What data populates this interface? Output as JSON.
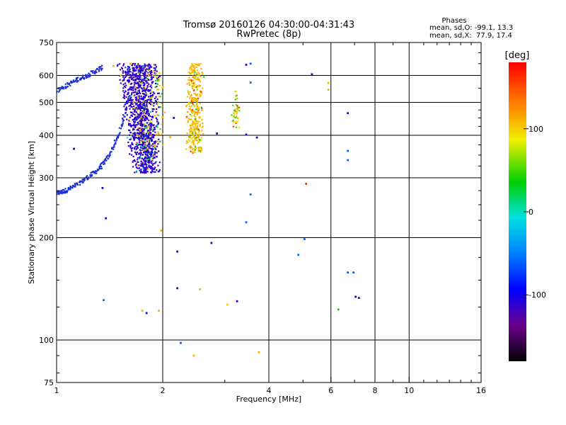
{
  "chart_data": {
    "type": "scatter",
    "title": "Tromsø 20160126 04:30:00-04:31:43",
    "subtitle": "RwPretec (8p)",
    "stats": {
      "heading": "Phases",
      "line_o": "mean, sd,O: -99.1, 13.3",
      "line_x": "mean, sd,X:  77.9, 17.4"
    },
    "xlabel": "Frequency [MHz]",
    "ylabel": "Stationary phase Virtual Height [km]",
    "x_scale": "log",
    "y_scale": "log",
    "xlim": [
      1,
      16
    ],
    "ylim": [
      75,
      750
    ],
    "x_ticks": [
      1,
      2,
      4,
      6,
      8,
      10,
      16
    ],
    "x_tick_labels": [
      "1",
      "2",
      "4",
      "6",
      "8",
      "10",
      "16"
    ],
    "y_ticks": [
      75,
      100,
      200,
      300,
      400,
      500,
      600,
      750
    ],
    "y_tick_labels": [
      "75",
      "100",
      "200",
      "300",
      "400",
      "500",
      "600",
      "750"
    ],
    "grid": true,
    "colorbar": {
      "label": "[deg]",
      "range": [
        -180,
        180
      ],
      "ticks": [
        -100,
        0,
        100
      ],
      "tick_labels": [
        "-100",
        "0",
        "100"
      ]
    },
    "colors": {
      "o_trace": "#1b2fd6",
      "x_trace": "#d8dc18"
    },
    "traces": [
      {
        "name": "",
        "mode": "o",
        "color": "#1b2fd6",
        "x": [
          1.0,
          1.03,
          1.06,
          1.1,
          1.15,
          1.2,
          1.25,
          1.3,
          1.35,
          1.4,
          1.45,
          1.5,
          1.55,
          1.6
        ],
        "y": [
          270,
          272,
          275,
          280,
          287,
          296,
          305,
          315,
          328,
          345,
          370,
          400,
          450,
          520
        ]
      },
      {
        "name": "",
        "mode": "o",
        "color": "#1b2fd6",
        "x": [
          1.0,
          1.05,
          1.1,
          1.15,
          1.2,
          1.25,
          1.3,
          1.35
        ],
        "y": [
          540,
          555,
          570,
          585,
          595,
          608,
          620,
          635
        ]
      }
    ],
    "scatter_points": [
      {
        "x": 1.35,
        "y": 280,
        "phase": -110
      },
      {
        "x": 1.12,
        "y": 365,
        "phase": -100
      },
      {
        "x": 1.38,
        "y": 228,
        "phase": -110
      },
      {
        "x": 1.36,
        "y": 131,
        "phase": -60
      },
      {
        "x": 1.75,
        "y": 122,
        "phase": 110
      },
      {
        "x": 1.8,
        "y": 120,
        "phase": -90
      },
      {
        "x": 1.95,
        "y": 122,
        "phase": 110
      },
      {
        "x": 2.2,
        "y": 182,
        "phase": -110
      },
      {
        "x": 2.2,
        "y": 142,
        "phase": -110
      },
      {
        "x": 2.25,
        "y": 98,
        "phase": -60
      },
      {
        "x": 2.45,
        "y": 90,
        "phase": 110
      },
      {
        "x": 2.55,
        "y": 141,
        "phase": 110
      },
      {
        "x": 2.75,
        "y": 193,
        "phase": -110
      },
      {
        "x": 2.85,
        "y": 405,
        "phase": -110
      },
      {
        "x": 3.05,
        "y": 127,
        "phase": 100
      },
      {
        "x": 3.25,
        "y": 130,
        "phase": -110
      },
      {
        "x": 3.45,
        "y": 645,
        "phase": -110
      },
      {
        "x": 3.55,
        "y": 650,
        "phase": -60
      },
      {
        "x": 3.55,
        "y": 572,
        "phase": -60
      },
      {
        "x": 3.55,
        "y": 268,
        "phase": -60
      },
      {
        "x": 3.45,
        "y": 222,
        "phase": -60
      },
      {
        "x": 3.45,
        "y": 402,
        "phase": -110
      },
      {
        "x": 3.7,
        "y": 394,
        "phase": -110
      },
      {
        "x": 3.75,
        "y": 92,
        "phase": 110
      },
      {
        "x": 4.85,
        "y": 178,
        "phase": -60
      },
      {
        "x": 5.05,
        "y": 198,
        "phase": -60
      },
      {
        "x": 5.1,
        "y": 288,
        "phase": 160
      },
      {
        "x": 5.3,
        "y": 605,
        "phase": -110
      },
      {
        "x": 5.9,
        "y": 570,
        "phase": 110
      },
      {
        "x": 5.9,
        "y": 545,
        "phase": 110
      },
      {
        "x": 6.3,
        "y": 123,
        "phase": 40
      },
      {
        "x": 6.7,
        "y": 465,
        "phase": -110
      },
      {
        "x": 6.7,
        "y": 360,
        "phase": -60
      },
      {
        "x": 6.7,
        "y": 338,
        "phase": -60
      },
      {
        "x": 6.7,
        "y": 158,
        "phase": -60
      },
      {
        "x": 6.95,
        "y": 158,
        "phase": -60
      },
      {
        "x": 7.05,
        "y": 134,
        "phase": -110
      },
      {
        "x": 7.2,
        "y": 133,
        "phase": -110
      },
      {
        "x": 1.45,
        "y": 640,
        "phase": 110
      },
      {
        "x": 1.62,
        "y": 650,
        "phase": 110
      },
      {
        "x": 1.98,
        "y": 210,
        "phase": 110
      },
      {
        "x": 2.0,
        "y": 452,
        "phase": 110
      },
      {
        "x": 2.1,
        "y": 395,
        "phase": 110
      },
      {
        "x": 2.15,
        "y": 450,
        "phase": -110
      }
    ],
    "clusters": [
      {
        "name": "",
        "mode": "o",
        "x_range": [
          1.45,
          1.98
        ],
        "y_range": [
          310,
          650
        ],
        "count": 1100,
        "phase_weights": [
          [
            -115,
            0.86
          ],
          [
            -80,
            0.06
          ],
          [
            0,
            0.02
          ],
          [
            80,
            0.03
          ],
          [
            115,
            0.03
          ]
        ]
      },
      {
        "name": "",
        "mode": "o",
        "x_range": [
          1.55,
          1.9
        ],
        "y_range": [
          335,
          650
        ],
        "count": 140,
        "phase_weights": [
          [
            -110,
            0.55
          ],
          [
            15,
            0.1
          ],
          [
            60,
            0.1
          ],
          [
            110,
            0.25
          ]
        ]
      },
      {
        "name": "",
        "mode": "x",
        "x_range": [
          2.32,
          2.62
        ],
        "y_range": [
          355,
          650
        ],
        "count": 360,
        "phase_weights": [
          [
            110,
            0.78
          ],
          [
            80,
            0.12
          ],
          [
            40,
            0.06
          ],
          [
            160,
            0.04
          ]
        ]
      },
      {
        "name": "",
        "mode": "x",
        "x_range": [
          3.1,
          3.35
        ],
        "y_range": [
          420,
          540
        ],
        "count": 45,
        "phase_weights": [
          [
            100,
            0.6
          ],
          [
            50,
            0.3
          ],
          [
            160,
            0.1
          ]
        ]
      },
      {
        "name": "",
        "mode": "x",
        "x_range": [
          1.85,
          2.05
        ],
        "y_range": [
          370,
          610
        ],
        "count": 40,
        "phase_weights": [
          [
            110,
            0.7
          ],
          [
            40,
            0.3
          ]
        ]
      }
    ]
  }
}
